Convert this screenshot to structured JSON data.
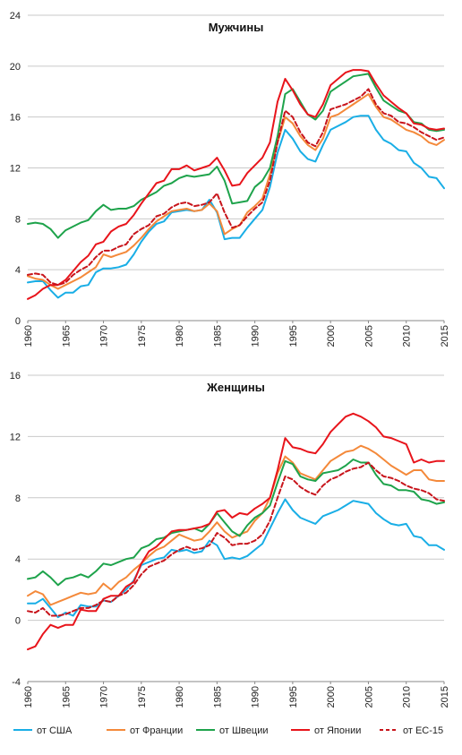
{
  "chart_data": [
    {
      "type": "line",
      "title": "Мужчины",
      "xlabel": "",
      "ylabel": "",
      "ylim": [
        0,
        24
      ],
      "yticks": [
        0,
        4,
        8,
        12,
        16,
        20,
        24
      ],
      "xlim": [
        1960,
        2015
      ],
      "xticks": [
        1960,
        1965,
        1970,
        1975,
        1980,
        1985,
        1990,
        1995,
        2000,
        2005,
        2010,
        2015
      ],
      "grid": "horizontal",
      "x": [
        1960,
        1961,
        1962,
        1963,
        1964,
        1965,
        1966,
        1967,
        1968,
        1969,
        1970,
        1971,
        1972,
        1973,
        1974,
        1975,
        1976,
        1977,
        1978,
        1979,
        1980,
        1981,
        1982,
        1983,
        1984,
        1985,
        1986,
        1987,
        1988,
        1989,
        1990,
        1991,
        1992,
        1993,
        1994,
        1995,
        1996,
        1997,
        1998,
        1999,
        2000,
        2001,
        2002,
        2003,
        2004,
        2005,
        2006,
        2007,
        2008,
        2009,
        2010,
        2011,
        2012,
        2013,
        2014,
        2015
      ],
      "series": [
        {
          "name": "от США",
          "color": "#19aee6",
          "dash": false,
          "values": [
            3.0,
            3.1,
            3.1,
            2.4,
            1.8,
            2.2,
            2.2,
            2.7,
            2.8,
            3.8,
            4.1,
            4.1,
            4.2,
            4.4,
            5.2,
            6.2,
            7.0,
            7.6,
            7.8,
            8.5,
            8.6,
            8.7,
            8.6,
            8.7,
            9.5,
            8.5,
            6.4,
            6.5,
            6.5,
            7.3,
            8.0,
            8.7,
            10.5,
            13.2,
            15.0,
            14.3,
            13.3,
            12.7,
            12.5,
            13.8,
            15.0,
            15.3,
            15.6,
            16.0,
            16.1,
            16.1,
            15.0,
            14.2,
            13.9,
            13.4,
            13.3,
            12.4,
            12.0,
            11.3,
            11.2,
            10.4
          ]
        },
        {
          "name": "от Франции",
          "color": "#f4893a",
          "dash": false,
          "values": [
            3.5,
            3.3,
            3.2,
            2.8,
            2.5,
            2.8,
            3.1,
            3.4,
            3.8,
            4.2,
            5.2,
            5.0,
            5.2,
            5.4,
            5.9,
            6.5,
            7.2,
            7.8,
            8.2,
            8.6,
            8.7,
            8.8,
            8.6,
            8.7,
            9.2,
            8.6,
            6.8,
            7.2,
            7.5,
            8.5,
            9.0,
            9.6,
            11.5,
            14.0,
            16.0,
            15.5,
            14.5,
            13.8,
            13.4,
            14.3,
            16.0,
            16.2,
            16.6,
            17.0,
            17.4,
            17.8,
            16.8,
            16.0,
            15.8,
            15.4,
            15.0,
            14.8,
            14.5,
            14.0,
            13.8,
            14.2
          ]
        },
        {
          "name": "от Швеции",
          "color": "#1ea34b",
          "dash": false,
          "values": [
            7.6,
            7.7,
            7.6,
            7.2,
            6.5,
            7.1,
            7.4,
            7.7,
            7.9,
            8.6,
            9.1,
            8.7,
            8.8,
            8.8,
            9.0,
            9.5,
            9.8,
            10.1,
            10.6,
            10.8,
            11.2,
            11.4,
            11.3,
            11.4,
            11.5,
            12.1,
            11.0,
            9.2,
            9.3,
            9.4,
            10.5,
            11.0,
            12.0,
            14.5,
            17.8,
            18.2,
            17.2,
            16.2,
            15.8,
            16.5,
            18.0,
            18.4,
            18.8,
            19.2,
            19.3,
            19.4,
            18.3,
            17.3,
            16.9,
            16.5,
            16.3,
            15.6,
            15.5,
            15.0,
            14.9,
            15.0
          ]
        },
        {
          "name": "от Японии",
          "color": "#e8141b",
          "dash": false,
          "values": [
            1.7,
            2.0,
            2.5,
            2.8,
            2.8,
            3.2,
            3.9,
            4.6,
            5.1,
            6.0,
            6.2,
            7.0,
            7.4,
            7.6,
            8.3,
            9.2,
            10.0,
            10.8,
            11.0,
            11.9,
            11.9,
            12.2,
            11.8,
            12.0,
            12.2,
            12.8,
            11.8,
            10.6,
            10.7,
            11.6,
            12.2,
            12.8,
            14.0,
            17.2,
            19.0,
            18.1,
            17.0,
            16.2,
            16.0,
            17.0,
            18.5,
            19.0,
            19.5,
            19.7,
            19.7,
            19.6,
            18.6,
            17.7,
            17.2,
            16.7,
            16.3,
            15.5,
            15.4,
            15.1,
            15.0,
            15.1
          ]
        },
        {
          "name": "от ЕС-15",
          "color": "#c8141b",
          "dash": true,
          "values": [
            3.6,
            3.7,
            3.6,
            3.0,
            2.8,
            3.0,
            3.6,
            4.0,
            4.3,
            5.0,
            5.5,
            5.5,
            5.8,
            6.0,
            6.8,
            7.2,
            7.5,
            8.2,
            8.4,
            8.9,
            9.2,
            9.3,
            9.0,
            9.1,
            9.3,
            10.0,
            8.5,
            7.3,
            7.5,
            8.2,
            8.8,
            9.3,
            11.0,
            14.0,
            16.5,
            16.0,
            14.8,
            14.0,
            13.7,
            14.8,
            16.6,
            16.8,
            17.0,
            17.3,
            17.6,
            18.2,
            17.0,
            16.3,
            16.1,
            15.6,
            15.5,
            15.2,
            14.8,
            14.5,
            14.2,
            14.4
          ]
        }
      ]
    },
    {
      "type": "line",
      "title": "Женщины",
      "xlabel": "",
      "ylabel": "",
      "ylim": [
        -4,
        16
      ],
      "yticks": [
        -4,
        0,
        4,
        8,
        12,
        16
      ],
      "xlim": [
        1960,
        2015
      ],
      "xticks": [
        1960,
        1965,
        1970,
        1975,
        1980,
        1985,
        1990,
        1995,
        2000,
        2005,
        2010,
        2015
      ],
      "grid": "horizontal",
      "x": [
        1960,
        1961,
        1962,
        1963,
        1964,
        1965,
        1966,
        1967,
        1968,
        1969,
        1970,
        1971,
        1972,
        1973,
        1974,
        1975,
        1976,
        1977,
        1978,
        1979,
        1980,
        1981,
        1982,
        1983,
        1984,
        1985,
        1986,
        1987,
        1988,
        1989,
        1990,
        1991,
        1992,
        1993,
        1994,
        1995,
        1996,
        1997,
        1998,
        1999,
        2000,
        2001,
        2002,
        2003,
        2004,
        2005,
        2006,
        2007,
        2008,
        2009,
        2010,
        2011,
        2012,
        2013,
        2014,
        2015
      ],
      "series": [
        {
          "name": "от США",
          "color": "#19aee6",
          "dash": false,
          "values": [
            1.1,
            1.1,
            1.4,
            0.8,
            0.2,
            0.5,
            0.3,
            1.0,
            0.9,
            0.9,
            1.3,
            1.2,
            1.6,
            2.0,
            2.6,
            3.6,
            3.8,
            4.0,
            4.1,
            4.6,
            4.5,
            4.6,
            4.4,
            4.5,
            5.2,
            4.9,
            4.0,
            4.1,
            4.0,
            4.2,
            4.6,
            5.0,
            6.0,
            7.0,
            7.9,
            7.2,
            6.7,
            6.5,
            6.3,
            6.8,
            7.0,
            7.2,
            7.5,
            7.8,
            7.7,
            7.6,
            7.0,
            6.6,
            6.3,
            6.2,
            6.3,
            5.5,
            5.4,
            4.9,
            4.9,
            4.6
          ]
        },
        {
          "name": "от Франции",
          "color": "#f4893a",
          "dash": false,
          "values": [
            1.6,
            1.9,
            1.7,
            1.0,
            1.2,
            1.4,
            1.6,
            1.8,
            1.7,
            1.8,
            2.4,
            2.0,
            2.5,
            2.8,
            3.3,
            3.7,
            4.2,
            4.6,
            4.8,
            5.2,
            5.6,
            5.4,
            5.2,
            5.3,
            5.8,
            6.4,
            5.8,
            5.4,
            5.6,
            5.8,
            6.5,
            7.0,
            8.0,
            9.6,
            10.7,
            10.3,
            9.6,
            9.4,
            9.2,
            9.8,
            10.4,
            10.7,
            11.0,
            11.1,
            11.4,
            11.2,
            10.9,
            10.5,
            10.1,
            9.8,
            9.5,
            9.8,
            9.8,
            9.2,
            9.1,
            9.1
          ]
        },
        {
          "name": "от Швеции",
          "color": "#1ea34b",
          "dash": false,
          "values": [
            2.7,
            2.8,
            3.2,
            2.8,
            2.3,
            2.7,
            2.8,
            3.0,
            2.8,
            3.2,
            3.7,
            3.6,
            3.8,
            4.0,
            4.1,
            4.7,
            4.9,
            5.3,
            5.4,
            5.7,
            5.8,
            5.9,
            6.0,
            5.8,
            6.3,
            7.0,
            6.4,
            5.8,
            5.5,
            6.2,
            6.7,
            7.0,
            7.5,
            9.0,
            10.4,
            10.2,
            9.4,
            9.2,
            9.1,
            9.6,
            9.7,
            9.8,
            10.1,
            10.5,
            10.3,
            10.3,
            9.5,
            8.9,
            8.8,
            8.5,
            8.5,
            8.4,
            7.9,
            7.8,
            7.6,
            7.7
          ]
        },
        {
          "name": "от Японии",
          "color": "#e8141b",
          "dash": false,
          "values": [
            -1.9,
            -1.7,
            -0.9,
            -0.3,
            -0.5,
            -0.3,
            -0.3,
            0.7,
            0.6,
            0.6,
            1.4,
            1.6,
            1.6,
            2.2,
            2.5,
            3.7,
            4.5,
            4.8,
            5.3,
            5.8,
            5.9,
            5.9,
            6.0,
            6.1,
            6.3,
            7.1,
            7.2,
            6.7,
            7.0,
            6.9,
            7.3,
            7.6,
            8.0,
            9.8,
            11.9,
            11.3,
            11.2,
            11.0,
            10.9,
            11.5,
            12.3,
            12.8,
            13.3,
            13.5,
            13.3,
            13.0,
            12.6,
            12.0,
            11.9,
            11.7,
            11.5,
            10.3,
            10.5,
            10.3,
            10.4,
            10.4
          ]
        },
        {
          "name": "от ЕС-15",
          "color": "#c8141b",
          "dash": true,
          "values": [
            0.6,
            0.5,
            0.8,
            0.3,
            0.3,
            0.4,
            0.6,
            0.8,
            0.8,
            1.0,
            1.3,
            1.2,
            1.6,
            1.8,
            2.3,
            3.0,
            3.5,
            3.7,
            3.9,
            4.3,
            4.6,
            4.8,
            4.6,
            4.7,
            4.9,
            5.7,
            5.4,
            4.9,
            5.0,
            5.0,
            5.2,
            5.6,
            6.5,
            8.0,
            9.4,
            9.2,
            8.7,
            8.4,
            8.2,
            8.8,
            9.2,
            9.4,
            9.7,
            9.9,
            10.0,
            10.3,
            9.8,
            9.4,
            9.3,
            9.1,
            8.8,
            8.6,
            8.5,
            8.3,
            7.9,
            7.8
          ]
        }
      ]
    }
  ],
  "legend": {
    "placement": "bottom",
    "items": [
      {
        "label": "от США",
        "color": "#19aee6",
        "dash": false
      },
      {
        "label": "от Франции",
        "color": "#f4893a",
        "dash": false
      },
      {
        "label": "от Швеции",
        "color": "#1ea34b",
        "dash": false
      },
      {
        "label": "от Японии",
        "color": "#e8141b",
        "dash": false
      },
      {
        "label": "от ЕС-15",
        "color": "#c8141b",
        "dash": true
      }
    ]
  }
}
